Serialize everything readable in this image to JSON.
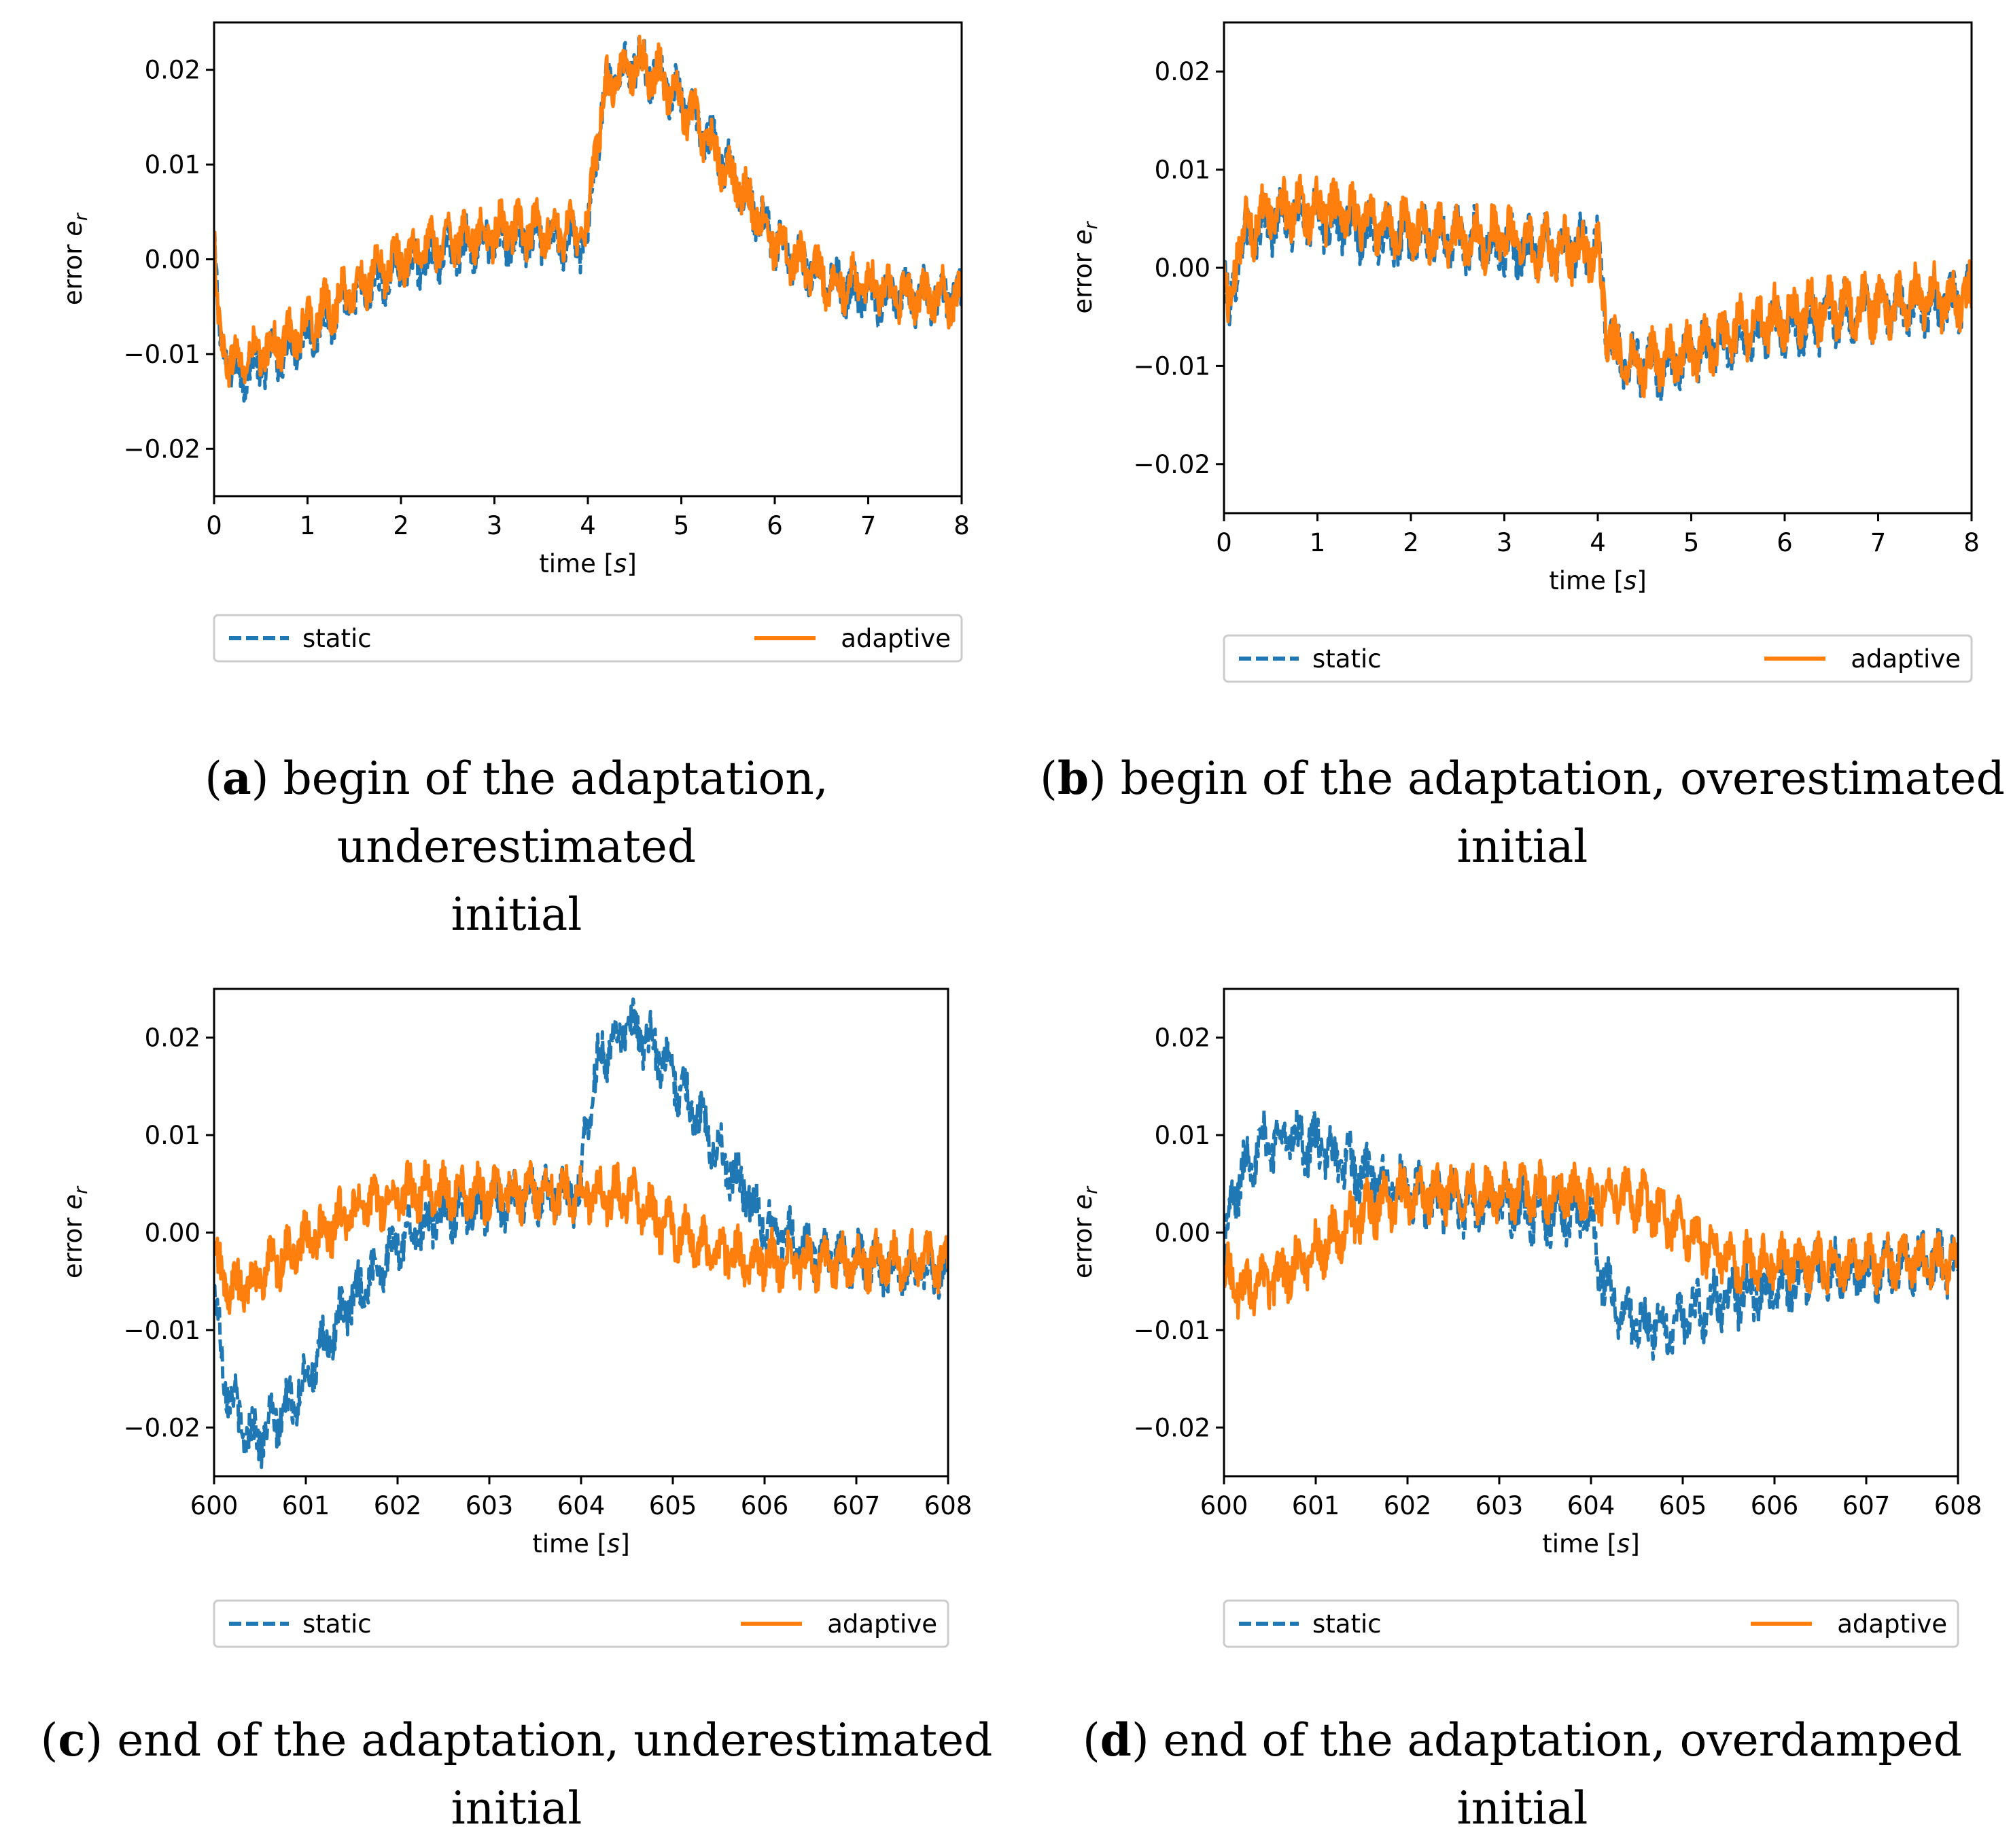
{
  "colors": {
    "static": "#1f77b4",
    "adaptive": "#ff7f0e"
  },
  "chart_data": [
    {
      "panel": "a",
      "type": "line",
      "xlabel": "time [s]",
      "ylabel": "error e_r",
      "xlim": [
        0,
        8
      ],
      "ylim": [
        -0.025,
        0.025
      ],
      "xticks": [
        0,
        1,
        2,
        3,
        4,
        5,
        6,
        7,
        8
      ],
      "xtick_labels": [
        "0",
        "1",
        "2",
        "3",
        "4",
        "5",
        "6",
        "7",
        "8"
      ],
      "yticks": [
        -0.02,
        -0.01,
        0.0,
        0.01,
        0.02
      ],
      "ytick_labels": [
        "−0.02",
        "−0.01",
        "0.00",
        "0.01",
        "0.02"
      ],
      "legend": [
        "static",
        "adaptive"
      ],
      "series": [
        {
          "name": "static",
          "style": "dashed",
          "amplitude": 0.002,
          "x": [
            0,
            0.05,
            0.2,
            0.5,
            1.0,
            1.5,
            2.0,
            2.5,
            3.0,
            3.5,
            4.0,
            4.08,
            4.2,
            4.5,
            4.8,
            5.2,
            5.6,
            6.0,
            6.5,
            7.0,
            7.5,
            8.0
          ],
          "y": [
            0.002,
            -0.008,
            -0.012,
            -0.011,
            -0.008,
            -0.004,
            -0.001,
            0.001,
            0.002,
            0.002,
            0.002,
            0.011,
            0.018,
            0.021,
            0.019,
            0.014,
            0.008,
            0.002,
            -0.002,
            -0.004,
            -0.004,
            -0.004
          ]
        },
        {
          "name": "adaptive",
          "style": "solid",
          "amplitude": 0.002,
          "x": [
            0,
            0.05,
            0.2,
            0.5,
            1.0,
            1.5,
            2.0,
            2.5,
            3.0,
            3.5,
            4.0,
            4.08,
            4.2,
            4.5,
            4.8,
            5.2,
            5.6,
            6.0,
            6.5,
            7.0,
            7.5,
            8.0
          ],
          "y": [
            0.002,
            -0.008,
            -0.011,
            -0.01,
            -0.007,
            -0.003,
            0.0,
            0.002,
            0.003,
            0.003,
            0.003,
            0.012,
            0.018,
            0.021,
            0.019,
            0.014,
            0.008,
            0.002,
            -0.002,
            -0.003,
            -0.004,
            -0.004
          ]
        }
      ]
    },
    {
      "panel": "b",
      "type": "line",
      "xlabel": "time [s]",
      "ylabel": "error e_r",
      "xlim": [
        0,
        8
      ],
      "ylim": [
        -0.025,
        0.025
      ],
      "xticks": [
        0,
        1,
        2,
        3,
        4,
        5,
        6,
        7,
        8
      ],
      "xtick_labels": [
        "0",
        "1",
        "2",
        "3",
        "4",
        "5",
        "6",
        "7",
        "8"
      ],
      "yticks": [
        -0.02,
        -0.01,
        0.0,
        0.01,
        0.02
      ],
      "ytick_labels": [
        "−0.02",
        "−0.01",
        "0.00",
        "0.01",
        "0.02"
      ],
      "legend": [
        "static",
        "adaptive"
      ],
      "series": [
        {
          "name": "static",
          "style": "dashed",
          "amplitude": 0.0022,
          "x": [
            0,
            0.05,
            0.15,
            0.5,
            1.0,
            1.5,
            2.0,
            2.5,
            3.0,
            3.5,
            4.0,
            4.08,
            4.2,
            4.5,
            4.8,
            5.2,
            5.6,
            6.0,
            6.5,
            7.0,
            7.5,
            8.0
          ],
          "y": [
            0.0,
            -0.006,
            0.002,
            0.005,
            0.005,
            0.004,
            0.003,
            0.003,
            0.002,
            0.002,
            0.002,
            -0.005,
            -0.009,
            -0.01,
            -0.01,
            -0.008,
            -0.007,
            -0.006,
            -0.005,
            -0.004,
            -0.004,
            -0.003
          ]
        },
        {
          "name": "adaptive",
          "style": "solid",
          "amplitude": 0.0022,
          "x": [
            0,
            0.05,
            0.15,
            0.5,
            1.0,
            1.5,
            2.0,
            2.5,
            3.0,
            3.5,
            4.0,
            4.08,
            4.2,
            4.5,
            4.8,
            5.2,
            5.6,
            6.0,
            6.5,
            7.0,
            7.5,
            8.0
          ],
          "y": [
            0.0,
            -0.006,
            0.003,
            0.006,
            0.006,
            0.005,
            0.004,
            0.003,
            0.003,
            0.002,
            0.002,
            -0.005,
            -0.009,
            -0.01,
            -0.009,
            -0.008,
            -0.006,
            -0.005,
            -0.004,
            -0.004,
            -0.003,
            -0.003
          ]
        }
      ]
    },
    {
      "panel": "c",
      "type": "line",
      "xlabel": "time [s]",
      "ylabel": "error e_r",
      "xlim": [
        600,
        608
      ],
      "ylim": [
        -0.025,
        0.025
      ],
      "xticks": [
        600,
        601,
        602,
        603,
        604,
        605,
        606,
        607,
        608
      ],
      "xtick_labels": [
        "600",
        "601",
        "602",
        "603",
        "604",
        "605",
        "606",
        "607",
        "608"
      ],
      "yticks": [
        -0.02,
        -0.01,
        0.0,
        0.01,
        0.02
      ],
      "ytick_labels": [
        "−0.02",
        "−0.01",
        "0.00",
        "0.01",
        "0.02"
      ],
      "legend": [
        "static",
        "adaptive"
      ],
      "series": [
        {
          "name": "static",
          "style": "dashed",
          "amplitude": 0.002,
          "x": [
            600,
            600.1,
            600.3,
            600.5,
            600.8,
            601.0,
            601.5,
            602.0,
            602.5,
            603.0,
            603.5,
            604.0,
            604.05,
            604.2,
            604.5,
            604.8,
            605.2,
            605.6,
            606.0,
            606.5,
            607.0,
            607.5,
            608.0
          ],
          "y": [
            -0.006,
            -0.014,
            -0.02,
            -0.021,
            -0.018,
            -0.015,
            -0.007,
            -0.001,
            0.002,
            0.003,
            0.004,
            0.004,
            0.011,
            0.018,
            0.021,
            0.019,
            0.013,
            0.007,
            0.001,
            -0.002,
            -0.003,
            -0.004,
            -0.004
          ]
        },
        {
          "name": "adaptive",
          "style": "solid",
          "amplitude": 0.002,
          "x": [
            600,
            600.2,
            600.4,
            600.7,
            601.0,
            601.5,
            602.0,
            602.5,
            603.0,
            603.5,
            604.0,
            604.5,
            605.0,
            605.5,
            606.0,
            606.5,
            607.0,
            607.5,
            608.0
          ],
          "y": [
            -0.003,
            -0.006,
            -0.005,
            -0.003,
            -0.001,
            0.002,
            0.004,
            0.004,
            0.004,
            0.004,
            0.004,
            0.004,
            0.0,
            -0.002,
            -0.003,
            -0.003,
            -0.003,
            -0.003,
            -0.003
          ]
        }
      ]
    },
    {
      "panel": "d",
      "type": "line",
      "xlabel": "time [s]",
      "ylabel": "error e_r",
      "xlim": [
        600,
        608
      ],
      "ylim": [
        -0.025,
        0.025
      ],
      "xticks": [
        600,
        601,
        602,
        603,
        604,
        605,
        606,
        607,
        608
      ],
      "xtick_labels": [
        "600",
        "601",
        "602",
        "603",
        "604",
        "605",
        "606",
        "607",
        "608"
      ],
      "yticks": [
        -0.02,
        -0.01,
        0.0,
        0.01,
        0.02
      ],
      "ytick_labels": [
        "−0.02",
        "−0.01",
        "0.00",
        "0.01",
        "0.02"
      ],
      "legend": [
        "static",
        "adaptive"
      ],
      "series": [
        {
          "name": "static",
          "style": "dashed",
          "amplitude": 0.0022,
          "x": [
            600,
            600.1,
            600.3,
            600.6,
            601.0,
            601.5,
            602.0,
            602.5,
            603.0,
            603.5,
            604.0,
            604.1,
            604.3,
            604.6,
            605.0,
            605.4,
            605.8,
            606.2,
            606.6,
            607.0,
            607.5,
            608.0
          ],
          "y": [
            -0.003,
            0.004,
            0.008,
            0.01,
            0.009,
            0.006,
            0.004,
            0.003,
            0.003,
            0.002,
            0.002,
            -0.004,
            -0.008,
            -0.01,
            -0.009,
            -0.007,
            -0.006,
            -0.005,
            -0.004,
            -0.004,
            -0.003,
            -0.003
          ]
        },
        {
          "name": "adaptive",
          "style": "solid",
          "amplitude": 0.002,
          "x": [
            600,
            600.2,
            600.5,
            601.0,
            601.5,
            602.0,
            602.5,
            603.0,
            603.5,
            604.0,
            604.3,
            604.6,
            605.0,
            605.5,
            606.0,
            606.5,
            607.0,
            607.5,
            608.0
          ],
          "y": [
            -0.004,
            -0.006,
            -0.005,
            -0.002,
            0.002,
            0.004,
            0.004,
            0.004,
            0.004,
            0.004,
            0.004,
            0.003,
            0.0,
            -0.003,
            -0.003,
            -0.003,
            -0.003,
            -0.003,
            -0.003
          ]
        }
      ]
    }
  ],
  "captions": [
    {
      "label": "a",
      "text": "begin of the adaptation, underestimated",
      "line2": "initial"
    },
    {
      "label": "b",
      "text": "begin of the adaptation, overestimated",
      "line2": "initial"
    },
    {
      "label": "c",
      "text": "end of the adaptation, underestimated",
      "line2": "initial"
    },
    {
      "label": "d",
      "text": "end of the adaptation, overdamped",
      "line2": "initial"
    }
  ]
}
